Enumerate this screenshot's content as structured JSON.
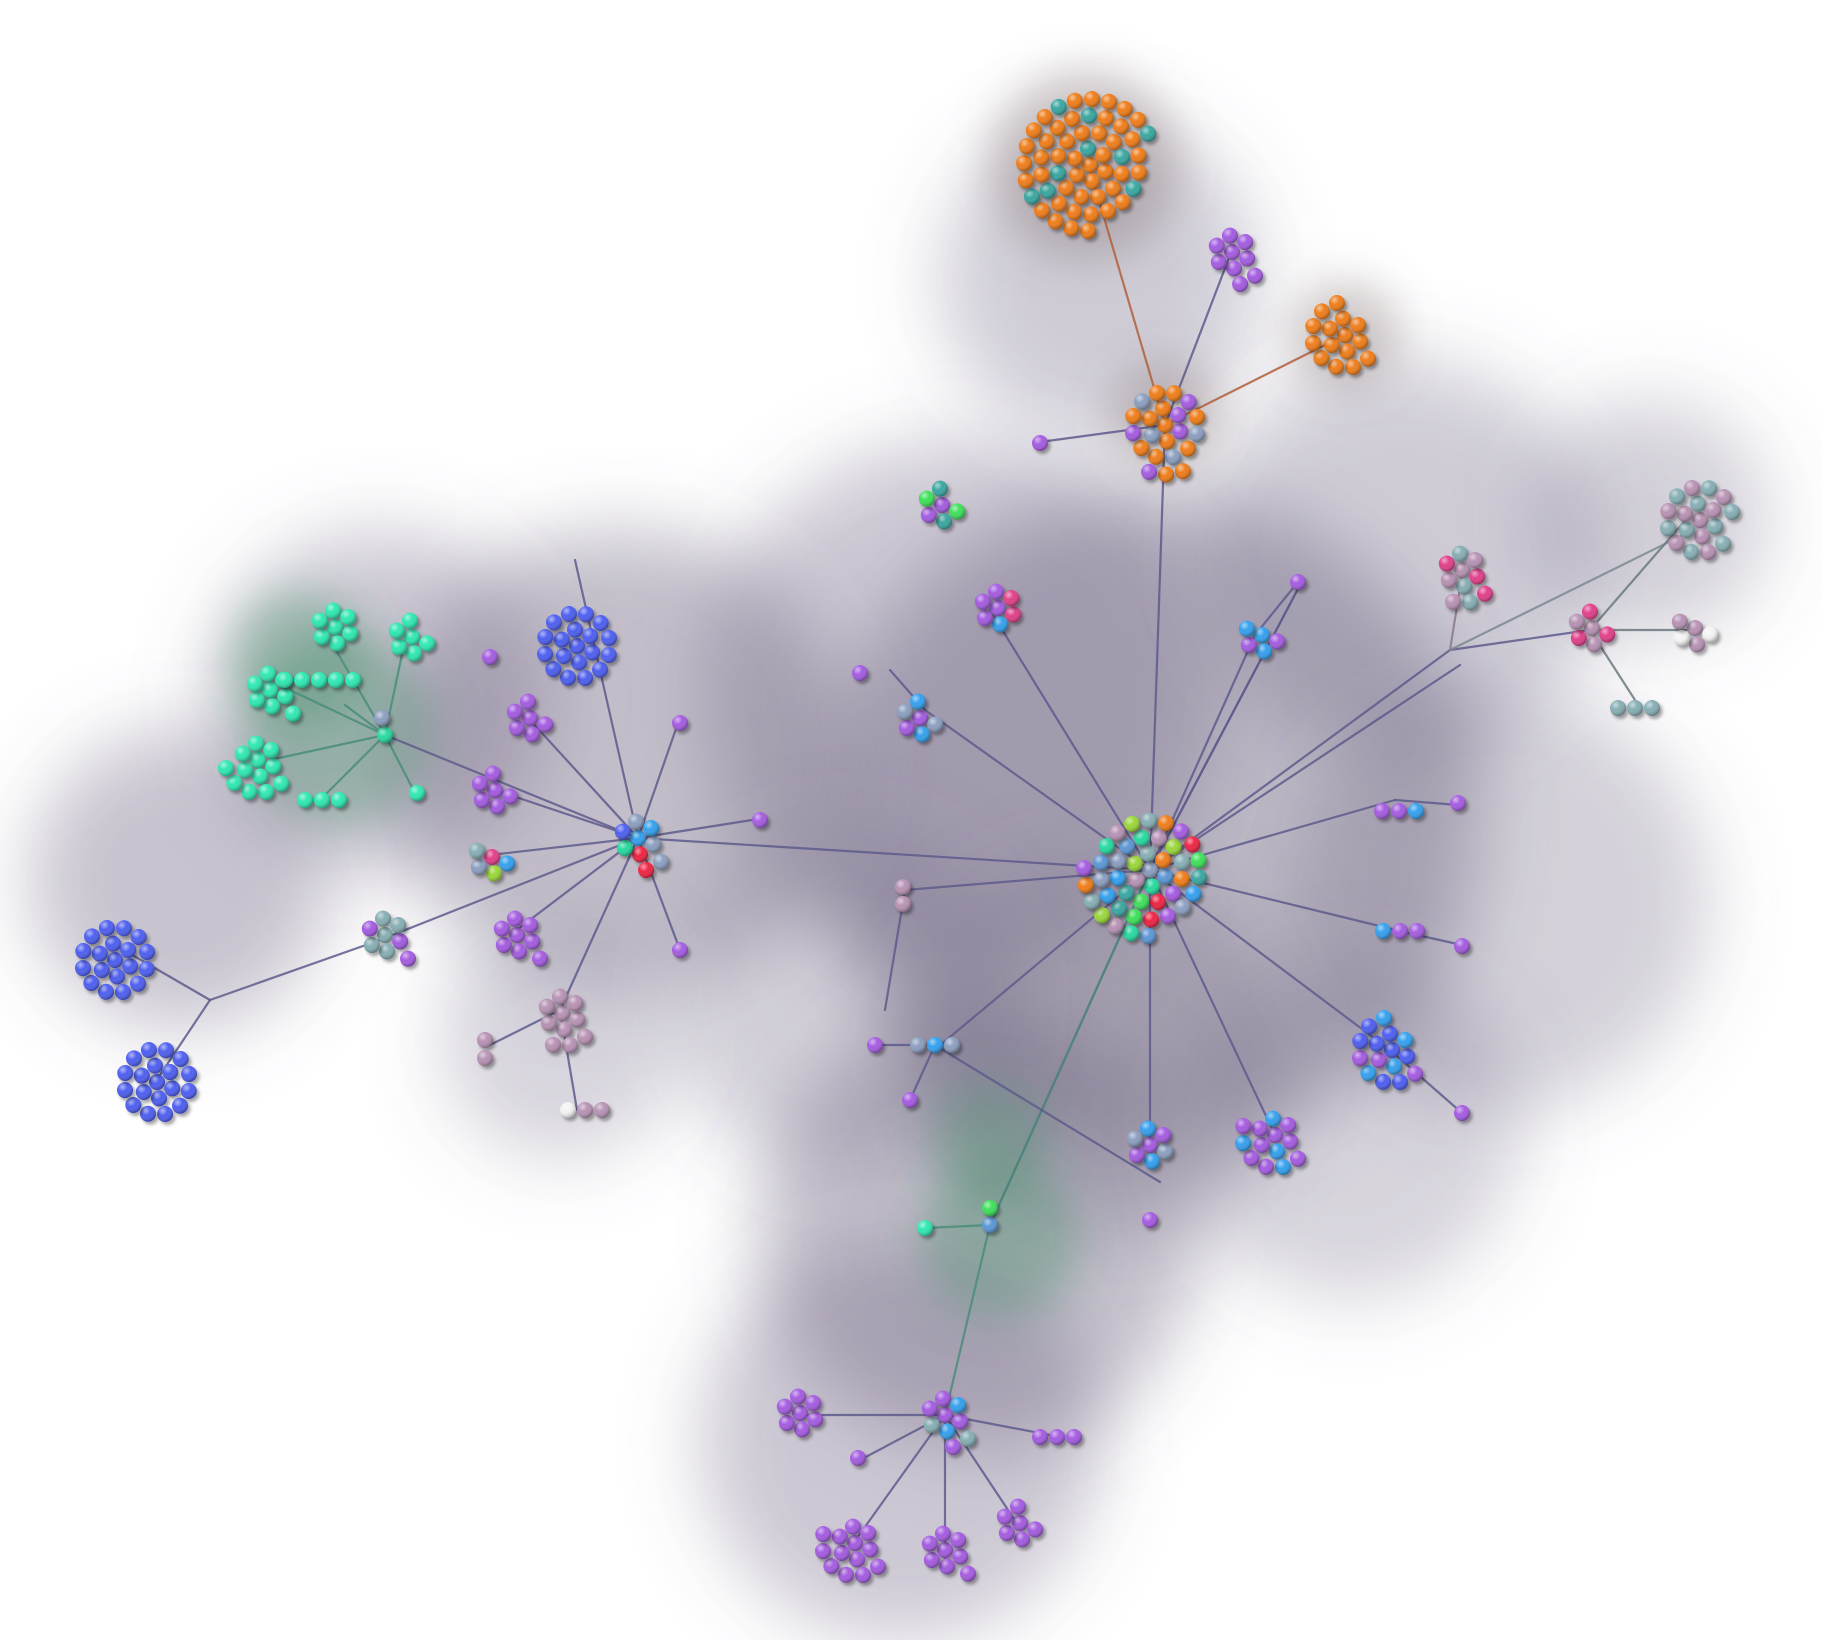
{
  "diagram": {
    "kind": "network-graph",
    "text": []
  },
  "palette": {
    "orange": "#ef7d1a",
    "purple": "#a45ce0",
    "blue": "#4e5ff0",
    "teal": "#27d9a0",
    "mint": "#2fe8b2",
    "mauve": "#b792b4",
    "slate": "#8c9fc0",
    "steel": "#5c97d6",
    "sky": "#35a0ee",
    "red": "#ee2444",
    "pink": "#e0408a",
    "lime": "#9ad63a",
    "green": "#3ee05a",
    "cyan": "#3aa6a0",
    "grayteal": "#86aeb4",
    "white": "#f2f2f2",
    "edge": "#5e5a8c",
    "edge_green": "#4a8c7a",
    "edge_orange": "#b0603a",
    "halo": "#6e6480"
  }
}
